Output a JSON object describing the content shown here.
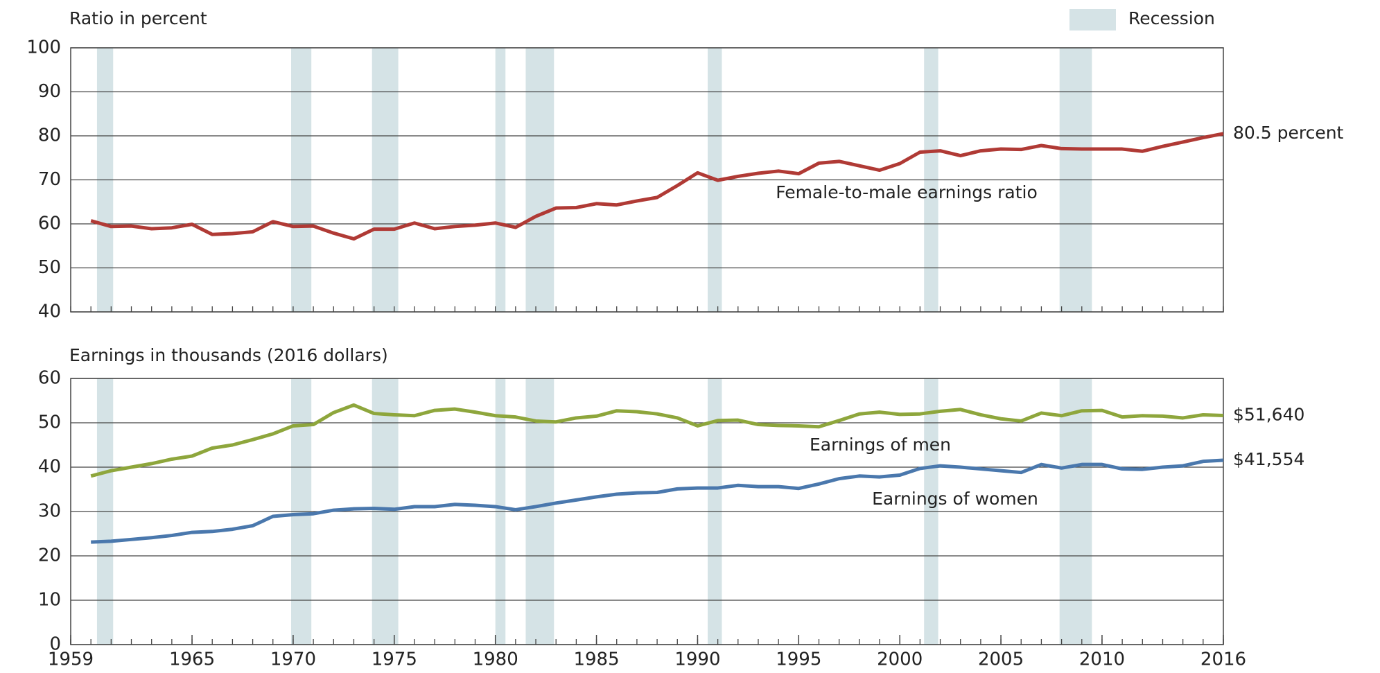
{
  "recession": {
    "label": "Recession",
    "color": "#d5e3e6",
    "periods": [
      [
        1960.3,
        1961.1
      ],
      [
        1969.9,
        1970.9
      ],
      [
        1973.9,
        1975.2
      ],
      [
        1980.0,
        1980.5
      ],
      [
        1981.5,
        1982.9
      ],
      [
        1990.5,
        1991.2
      ],
      [
        2001.2,
        2001.9
      ],
      [
        2007.9,
        2009.5
      ]
    ]
  },
  "chart_data": [
    {
      "type": "line",
      "y_label": "Ratio in percent",
      "x": [
        1960,
        1961,
        1962,
        1963,
        1964,
        1965,
        1966,
        1967,
        1968,
        1969,
        1970,
        1971,
        1972,
        1973,
        1974,
        1975,
        1976,
        1977,
        1978,
        1979,
        1980,
        1981,
        1982,
        1983,
        1984,
        1985,
        1986,
        1987,
        1988,
        1989,
        1990,
        1991,
        1992,
        1993,
        1994,
        1995,
        1996,
        1997,
        1998,
        1999,
        2000,
        2001,
        2002,
        2003,
        2004,
        2005,
        2006,
        2007,
        2008,
        2009,
        2010,
        2011,
        2012,
        2013,
        2014,
        2015,
        2016
      ],
      "xlim": [
        1959,
        2016
      ],
      "ylim": [
        40,
        100
      ],
      "yticks": [
        40,
        50,
        60,
        70,
        80,
        90,
        100
      ],
      "grid": true,
      "series": [
        {
          "name": "Female-to-male earnings ratio",
          "color": "#b03a35",
          "values": [
            60.7,
            59.4,
            59.5,
            58.9,
            59.1,
            59.9,
            57.6,
            57.8,
            58.2,
            60.5,
            59.4,
            59.5,
            57.9,
            56.6,
            58.8,
            58.8,
            60.2,
            58.9,
            59.4,
            59.7,
            60.2,
            59.2,
            61.7,
            63.6,
            63.7,
            64.6,
            64.3,
            65.2,
            66.0,
            68.7,
            71.6,
            69.9,
            70.8,
            71.5,
            72.0,
            71.4,
            73.8,
            74.2,
            73.2,
            72.2,
            73.7,
            76.3,
            76.6,
            75.5,
            76.6,
            77.0,
            76.9,
            77.8,
            77.1,
            77.0,
            77.0,
            77.0,
            76.5,
            77.6,
            78.6,
            79.6,
            80.5
          ],
          "value_labels": [
            null,
            null,
            null,
            null,
            null,
            null,
            null,
            null,
            null,
            null,
            null,
            null,
            null,
            null,
            null,
            null,
            null,
            null,
            null,
            null,
            null,
            null,
            null,
            null,
            null,
            null,
            null,
            null,
            null,
            null,
            null,
            null,
            null,
            null,
            null,
            null,
            null,
            null,
            null,
            null,
            null,
            null,
            null,
            null,
            null,
            null,
            null,
            null,
            null,
            null,
            null,
            null,
            null,
            null,
            null,
            null,
            "80.5 percent"
          ]
        }
      ]
    },
    {
      "type": "line",
      "y_label": "Earnings in thousands (2016 dollars)",
      "x": [
        1960,
        1961,
        1962,
        1963,
        1964,
        1965,
        1966,
        1967,
        1968,
        1969,
        1970,
        1971,
        1972,
        1973,
        1974,
        1975,
        1976,
        1977,
        1978,
        1979,
        1980,
        1981,
        1982,
        1983,
        1984,
        1985,
        1986,
        1987,
        1988,
        1989,
        1990,
        1991,
        1992,
        1993,
        1994,
        1995,
        1996,
        1997,
        1998,
        1999,
        2000,
        2001,
        2002,
        2003,
        2004,
        2005,
        2006,
        2007,
        2008,
        2009,
        2010,
        2011,
        2012,
        2013,
        2014,
        2015,
        2016
      ],
      "xlim": [
        1959,
        2016
      ],
      "xticks": [
        1959,
        1965,
        1970,
        1975,
        1980,
        1985,
        1990,
        1995,
        2000,
        2005,
        2010,
        2016
      ],
      "ylim": [
        0,
        60
      ],
      "yticks": [
        0,
        10,
        20,
        30,
        40,
        50,
        60
      ],
      "grid": true,
      "series": [
        {
          "name": "Earnings of men",
          "color": "#8ea63c",
          "values": [
            38.0,
            39.2,
            40.0,
            40.8,
            41.8,
            42.5,
            44.3,
            45.0,
            46.2,
            47.5,
            49.3,
            49.6,
            52.3,
            54.0,
            52.1,
            51.8,
            51.6,
            52.8,
            53.1,
            52.4,
            51.6,
            51.3,
            50.4,
            50.2,
            51.1,
            51.5,
            52.7,
            52.5,
            52.0,
            51.1,
            49.3,
            50.5,
            50.6,
            49.6,
            49.4,
            49.3,
            49.1,
            50.5,
            52.0,
            52.4,
            51.9,
            52.0,
            52.6,
            53.0,
            51.8,
            50.9,
            50.4,
            52.2,
            51.6,
            52.7,
            52.8,
            51.3,
            51.6,
            51.5,
            51.1,
            51.8,
            51.64
          ],
          "value_labels": [
            null,
            null,
            null,
            null,
            null,
            null,
            null,
            null,
            null,
            null,
            null,
            null,
            null,
            null,
            null,
            null,
            null,
            null,
            null,
            null,
            null,
            null,
            null,
            null,
            null,
            null,
            null,
            null,
            null,
            null,
            null,
            null,
            null,
            null,
            null,
            null,
            null,
            null,
            null,
            null,
            null,
            null,
            null,
            null,
            null,
            null,
            null,
            null,
            null,
            null,
            null,
            null,
            null,
            null,
            null,
            null,
            "$51,640"
          ]
        },
        {
          "name": "Earnings of women",
          "color": "#4a78ad",
          "values": [
            23.1,
            23.3,
            23.7,
            24.1,
            24.6,
            25.3,
            25.5,
            26.0,
            26.8,
            28.9,
            29.3,
            29.5,
            30.3,
            30.6,
            30.7,
            30.5,
            31.1,
            31.1,
            31.6,
            31.4,
            31.1,
            30.4,
            31.1,
            31.9,
            32.6,
            33.3,
            33.9,
            34.2,
            34.3,
            35.1,
            35.3,
            35.3,
            35.9,
            35.6,
            35.6,
            35.2,
            36.2,
            37.4,
            38.0,
            37.8,
            38.2,
            39.7,
            40.3,
            40.0,
            39.6,
            39.2,
            38.8,
            40.6,
            39.8,
            40.6,
            40.6,
            39.6,
            39.5,
            40.0,
            40.3,
            41.3,
            41.554
          ],
          "value_labels": [
            null,
            null,
            null,
            null,
            null,
            null,
            null,
            null,
            null,
            null,
            null,
            null,
            null,
            null,
            null,
            null,
            null,
            null,
            null,
            null,
            null,
            null,
            null,
            null,
            null,
            null,
            null,
            null,
            null,
            null,
            null,
            null,
            null,
            null,
            null,
            null,
            null,
            null,
            null,
            null,
            null,
            null,
            null,
            null,
            null,
            null,
            null,
            null,
            null,
            null,
            null,
            null,
            null,
            null,
            null,
            null,
            "$41,554"
          ]
        }
      ]
    }
  ]
}
